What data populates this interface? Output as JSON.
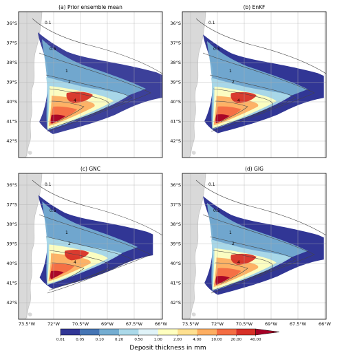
{
  "figure": {
    "panels": [
      {
        "id": "a",
        "title": "(a) Prior ensemble mean"
      },
      {
        "id": "b",
        "title": "(b) EnKF"
      },
      {
        "id": "c",
        "title": "(c) GNC"
      },
      {
        "id": "d",
        "title": "(d) GIG"
      }
    ],
    "lat_labels": [
      "36°S",
      "37°S",
      "38°S",
      "39°S",
      "40°S",
      "41°S",
      "42°S"
    ],
    "lon_labels": [
      "73.5°W",
      "72°W",
      "70.5°W",
      "69°W",
      "67.5°W",
      "66°W"
    ],
    "isopach_labels": [
      "0.1",
      "0.5",
      "1",
      "2",
      "4"
    ],
    "colorbar": {
      "label": "Deposit thickness in mm",
      "ticks": [
        "0.01",
        "0.05",
        "0.10",
        "0.20",
        "0.50",
        "1.00",
        "2.00",
        "4.00",
        "10.00",
        "20.00",
        "40.00"
      ],
      "colors": [
        "#313695",
        "#4575b4",
        "#74add1",
        "#abd9e9",
        "#e0f3f8",
        "#ffffbf",
        "#fee090",
        "#fdae61",
        "#f46d43",
        "#d73027",
        "#a50026"
      ]
    },
    "land_color": "#d9d9d9",
    "ocean_color": "#ffffff"
  }
}
